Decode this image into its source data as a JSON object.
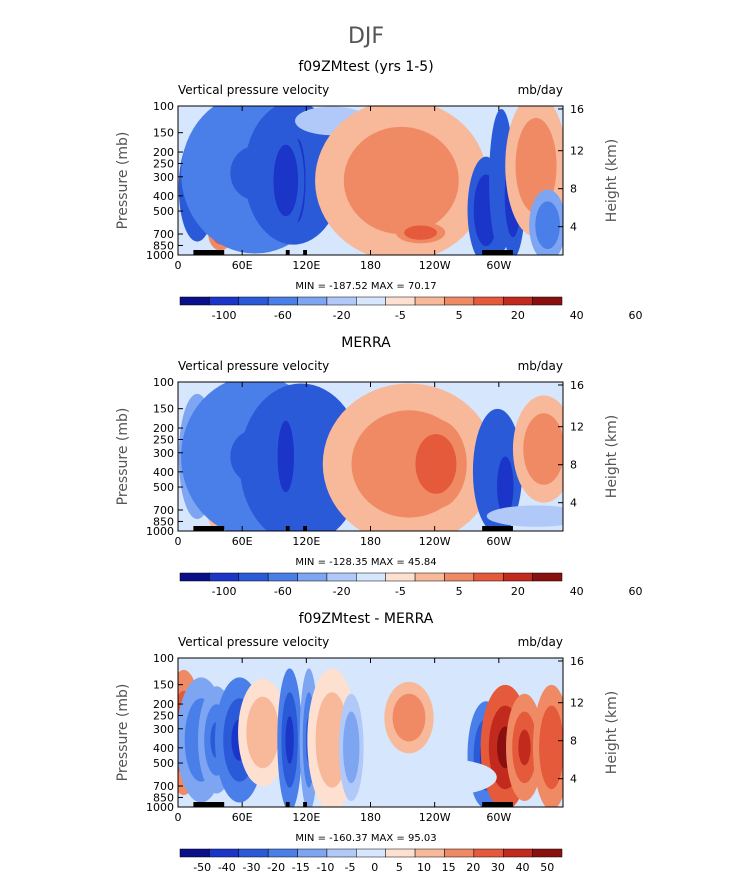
{
  "figure": {
    "title": "DJF"
  },
  "chart_data": [
    {
      "type": "heatmap",
      "title": "f09ZMtest (yrs 1-5)",
      "left_label": "Vertical pressure velocity",
      "right_label": "mb/day",
      "ylabel_left": "Pressure (mb)",
      "ylabel_right": "Height (km)",
      "x_ticks": [
        "0",
        "60E",
        "120E",
        "180",
        "120W",
        "60W"
      ],
      "y_ticks": [
        "100",
        "150",
        "200",
        "250",
        "300",
        "400",
        "500",
        "700",
        "850",
        "1000"
      ],
      "y_right_ticks": [
        "16",
        "12",
        "8",
        "4"
      ],
      "stats": "MIN = -187.52   MAX =  70.17",
      "colorbar_labels": [
        "-100",
        "-60",
        "-20",
        "-5",
        "5",
        "20",
        "40",
        "60"
      ],
      "colors": [
        "#0a0f8a",
        "#1a35c8",
        "#2a5ad8",
        "#4a7ee8",
        "#7ea5f2",
        "#b0c9f8",
        "#d6e6fc",
        "#fde0cf",
        "#f8b89a",
        "#f08a64",
        "#e55a3a",
        "#c22a1e",
        "#8a1010"
      ],
      "min": -187.52,
      "max": 70.17
    },
    {
      "type": "heatmap",
      "title": "MERRA",
      "left_label": "Vertical pressure velocity",
      "right_label": "mb/day",
      "ylabel_left": "Pressure (mb)",
      "ylabel_right": "Height (km)",
      "x_ticks": [
        "0",
        "60E",
        "120E",
        "180",
        "120W",
        "60W"
      ],
      "y_ticks": [
        "100",
        "150",
        "200",
        "250",
        "300",
        "400",
        "500",
        "700",
        "850",
        "1000"
      ],
      "y_right_ticks": [
        "16",
        "12",
        "8",
        "4"
      ],
      "stats": "MIN = -128.35   MAX =  45.84",
      "colorbar_labels": [
        "-100",
        "-60",
        "-20",
        "-5",
        "5",
        "20",
        "40",
        "60"
      ],
      "colors": [
        "#0a0f8a",
        "#1a35c8",
        "#2a5ad8",
        "#4a7ee8",
        "#7ea5f2",
        "#b0c9f8",
        "#d6e6fc",
        "#fde0cf",
        "#f8b89a",
        "#f08a64",
        "#e55a3a",
        "#c22a1e",
        "#8a1010"
      ],
      "min": -128.35,
      "max": 45.84
    },
    {
      "type": "heatmap",
      "title": "f09ZMtest - MERRA",
      "left_label": "Vertical pressure velocity",
      "right_label": "mb/day",
      "ylabel_left": "Pressure (mb)",
      "ylabel_right": "Height (km)",
      "x_ticks": [
        "0",
        "60E",
        "120E",
        "180",
        "120W",
        "60W"
      ],
      "y_ticks": [
        "100",
        "150",
        "200",
        "250",
        "300",
        "400",
        "500",
        "700",
        "850",
        "1000"
      ],
      "y_right_ticks": [
        "16",
        "12",
        "8",
        "4"
      ],
      "stats": "MIN = -160.37   MAX =  95.03",
      "colorbar_labels": [
        "-50",
        "-40",
        "-30",
        "-20",
        "-15",
        "-10",
        "-5",
        "0",
        "5",
        "10",
        "15",
        "20",
        "30",
        "40",
        "50"
      ],
      "colors": [
        "#0a0f8a",
        "#1a35c8",
        "#2a5ad8",
        "#4a7ee8",
        "#7ea5f2",
        "#b0c9f8",
        "#d6e6fc",
        "#fde0cf",
        "#f8b89a",
        "#f08a64",
        "#e55a3a",
        "#c22a1e",
        "#8a1010"
      ],
      "min": -160.37,
      "max": 95.03
    }
  ]
}
